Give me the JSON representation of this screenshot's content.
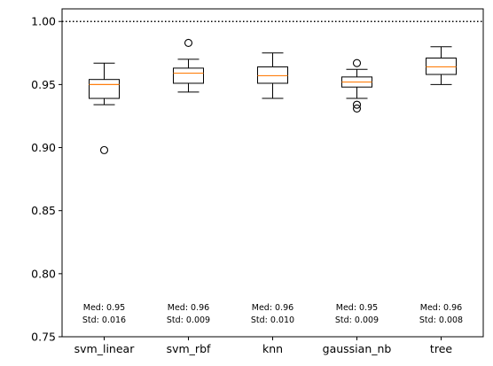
{
  "chart_data": {
    "type": "box",
    "title": "",
    "xlabel": "",
    "ylabel": "",
    "ylim": [
      0.75,
      1.01
    ],
    "yticks": [
      "0.75",
      "0.80",
      "0.85",
      "0.90",
      "0.95",
      "1.00"
    ],
    "grid": false,
    "reference_line": {
      "y": 1.0,
      "style": "dotted"
    },
    "categories": [
      "svm_linear",
      "svm_rbf",
      "knn",
      "gaussian_nb",
      "tree"
    ],
    "boxes": [
      {
        "whisker_low": 0.934,
        "q1": 0.939,
        "median": 0.95,
        "q3": 0.954,
        "whisker_high": 0.967,
        "outliers": [
          0.898
        ]
      },
      {
        "whisker_low": 0.944,
        "q1": 0.951,
        "median": 0.959,
        "q3": 0.963,
        "whisker_high": 0.97,
        "outliers": [
          0.983
        ]
      },
      {
        "whisker_low": 0.939,
        "q1": 0.951,
        "median": 0.957,
        "q3": 0.964,
        "whisker_high": 0.975,
        "outliers": []
      },
      {
        "whisker_low": 0.939,
        "q1": 0.948,
        "median": 0.952,
        "q3": 0.956,
        "whisker_high": 0.962,
        "outliers": [
          0.967,
          0.934,
          0.931
        ]
      },
      {
        "whisker_low": 0.95,
        "q1": 0.958,
        "median": 0.964,
        "q3": 0.971,
        "whisker_high": 0.98,
        "outliers": []
      }
    ],
    "annotations": [
      {
        "med": "Med: 0.95",
        "std": "Std: 0.016"
      },
      {
        "med": "Med: 0.96",
        "std": "Std: 0.009"
      },
      {
        "med": "Med: 0.96",
        "std": "Std: 0.010"
      },
      {
        "med": "Med: 0.95",
        "std": "Std: 0.009"
      },
      {
        "med": "Med: 0.96",
        "std": "Std: 0.008"
      }
    ],
    "colors": {
      "box": "#000000",
      "median": "#ff7f0e",
      "axes": "#000000"
    }
  }
}
